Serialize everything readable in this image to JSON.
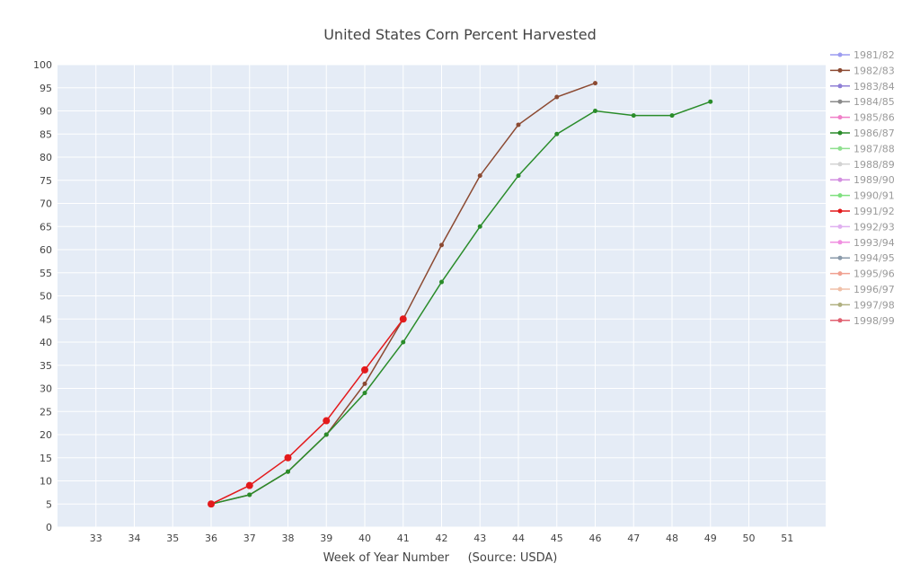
{
  "chart_data": {
    "type": "line",
    "title": "United States Corn Percent Harvested",
    "xlabel": "Week of Year Number     (Source: USDA)",
    "ylabel": "",
    "xlim": [
      32,
      52
    ],
    "ylim": [
      0,
      100
    ],
    "x_ticks": [
      33,
      34,
      35,
      36,
      37,
      38,
      39,
      40,
      41,
      42,
      43,
      44,
      45,
      46,
      47,
      48,
      49,
      50,
      51
    ],
    "y_ticks": [
      0,
      5,
      10,
      15,
      20,
      25,
      30,
      35,
      40,
      45,
      50,
      55,
      60,
      65,
      70,
      75,
      80,
      85,
      90,
      95,
      100
    ],
    "grid": true,
    "legend_placement": "right",
    "series": [
      {
        "name": "1981/82",
        "color": "#9c9cf0",
        "x": [],
        "y": []
      },
      {
        "name": "1982/83",
        "color": "#8c4a32",
        "x": [
          36,
          37,
          38,
          39,
          40,
          41,
          42,
          43,
          44,
          45,
          46
        ],
        "y": [
          5,
          7,
          12,
          20,
          31,
          45,
          61,
          76,
          87,
          93,
          96
        ]
      },
      {
        "name": "1983/84",
        "color": "#8f7fd6",
        "x": [],
        "y": []
      },
      {
        "name": "1984/85",
        "color": "#8a8a8a",
        "x": [],
        "y": []
      },
      {
        "name": "1985/86",
        "color": "#f07fc8",
        "x": [],
        "y": []
      },
      {
        "name": "1986/87",
        "color": "#2a8c2a",
        "x": [
          36,
          37,
          38,
          39,
          40,
          41,
          42,
          43,
          44,
          45,
          46,
          47,
          48,
          49
        ],
        "y": [
          5,
          7,
          12,
          20,
          29,
          40,
          53,
          65,
          76,
          85,
          90,
          89,
          89,
          92
        ]
      },
      {
        "name": "1987/88",
        "color": "#8fe08f",
        "x": [],
        "y": []
      },
      {
        "name": "1988/89",
        "color": "#d3d3d3",
        "x": [],
        "y": []
      },
      {
        "name": "1989/90",
        "color": "#d38fe0",
        "x": [],
        "y": []
      },
      {
        "name": "1990/91",
        "color": "#7fe07f",
        "x": [],
        "y": []
      },
      {
        "name": "1991/92",
        "color": "#e31a1c",
        "x": [
          36,
          37,
          38,
          39,
          40,
          41
        ],
        "y": [
          5,
          9,
          15,
          23,
          34,
          45
        ]
      },
      {
        "name": "1992/93",
        "color": "#e0b0f0",
        "x": [],
        "y": []
      },
      {
        "name": "1993/94",
        "color": "#f08fe0",
        "x": [],
        "y": []
      },
      {
        "name": "1994/95",
        "color": "#8a9aaa",
        "x": [],
        "y": []
      },
      {
        "name": "1995/96",
        "color": "#f0a090",
        "x": [],
        "y": []
      },
      {
        "name": "1996/97",
        "color": "#f0c0a8",
        "x": [],
        "y": []
      },
      {
        "name": "1997/98",
        "color": "#b0b080",
        "x": [],
        "y": []
      },
      {
        "name": "1998/99",
        "color": "#e06070",
        "x": [],
        "y": []
      }
    ]
  }
}
